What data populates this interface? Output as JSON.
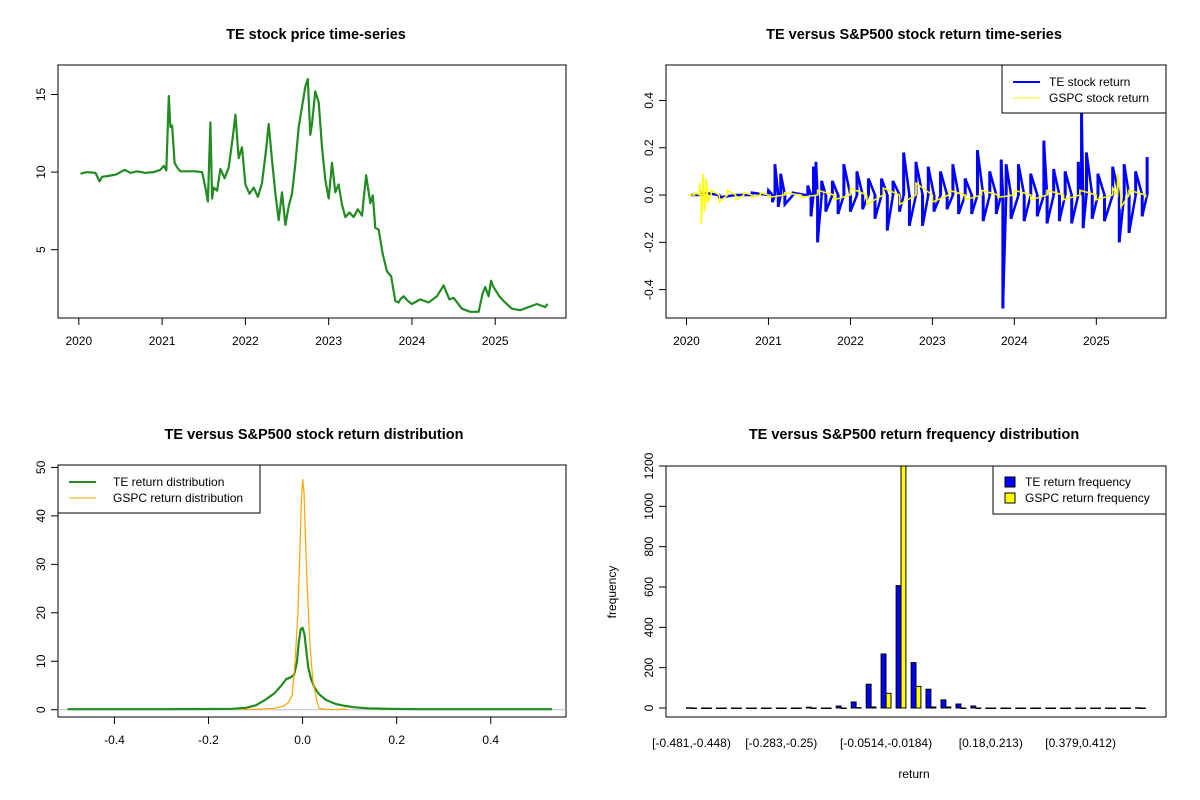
{
  "chart_data": [
    {
      "id": "price",
      "type": "line",
      "title": "TE stock price time-series",
      "xlabel": "",
      "ylabel": "",
      "xlim": [
        2019.75,
        2025.85
      ],
      "ylim": [
        0.6,
        16.9
      ],
      "xticks": [
        2020,
        2021,
        2022,
        2023,
        2024,
        2025
      ],
      "xtick_labels": [
        "2020",
        "2021",
        "2022",
        "2023",
        "2024",
        "2025"
      ],
      "yticks": [
        5,
        10,
        15
      ],
      "ytick_labels": [
        "5",
        "10",
        "15"
      ],
      "grid": false,
      "series": [
        {
          "name": "TE price",
          "color": "#228B22",
          "x": [
            2020.02,
            2020.1,
            2020.2,
            2020.25,
            2020.28,
            2020.35,
            2020.45,
            2020.55,
            2020.62,
            2020.7,
            2020.8,
            2020.9,
            2020.98,
            2021.02,
            2021.05,
            2021.08,
            2021.1,
            2021.12,
            2021.15,
            2021.18,
            2021.22,
            2021.3,
            2021.4,
            2021.48,
            2021.52,
            2021.55,
            2021.58,
            2021.6,
            2021.62,
            2021.66,
            2021.7,
            2021.75,
            2021.8,
            2021.85,
            2021.88,
            2021.92,
            2021.96,
            2022.0,
            2022.05,
            2022.1,
            2022.15,
            2022.2,
            2022.25,
            2022.28,
            2022.32,
            2022.36,
            2022.4,
            2022.44,
            2022.48,
            2022.52,
            2022.56,
            2022.6,
            2022.64,
            2022.68,
            2022.72,
            2022.75,
            2022.78,
            2022.8,
            2022.84,
            2022.88,
            2022.92,
            2022.96,
            2023.0,
            2023.04,
            2023.08,
            2023.12,
            2023.16,
            2023.2,
            2023.25,
            2023.3,
            2023.35,
            2023.4,
            2023.45,
            2023.5,
            2023.53,
            2023.56,
            2023.6,
            2023.65,
            2023.7,
            2023.75,
            2023.8,
            2023.84,
            2023.86,
            2023.9,
            2023.95,
            2024.0,
            2024.1,
            2024.2,
            2024.3,
            2024.38,
            2024.45,
            2024.5,
            2024.6,
            2024.7,
            2024.8,
            2024.85,
            2024.88,
            2024.92,
            2024.95,
            2024.98,
            2025.05,
            2025.1,
            2025.2,
            2025.3,
            2025.4,
            2025.5,
            2025.6,
            2025.63
          ],
          "y": [
            9.9,
            10.0,
            9.95,
            9.4,
            9.7,
            9.75,
            9.85,
            10.15,
            9.95,
            10.05,
            9.95,
            10.0,
            10.15,
            10.4,
            10.1,
            14.9,
            12.9,
            13.0,
            10.6,
            10.3,
            10.05,
            10.05,
            10.05,
            10.0,
            9.0,
            8.1,
            13.2,
            8.3,
            9.0,
            8.8,
            10.2,
            9.6,
            10.3,
            12.3,
            13.7,
            10.9,
            11.6,
            9.2,
            8.6,
            9.0,
            8.4,
            9.3,
            11.5,
            13.1,
            10.8,
            8.6,
            6.9,
            8.7,
            6.6,
            7.8,
            8.6,
            10.5,
            12.9,
            14.2,
            15.5,
            16.0,
            12.4,
            13.1,
            15.2,
            14.5,
            11.6,
            9.5,
            8.3,
            10.6,
            8.7,
            9.2,
            7.9,
            7.1,
            7.4,
            7.1,
            7.6,
            7.2,
            9.8,
            8.0,
            8.5,
            6.4,
            6.3,
            4.7,
            3.6,
            3.3,
            1.7,
            1.6,
            1.8,
            2.0,
            1.7,
            1.5,
            1.8,
            1.6,
            2.0,
            2.7,
            1.8,
            1.9,
            1.2,
            1.0,
            1.0,
            2.2,
            2.6,
            2.0,
            3.0,
            2.6,
            2.0,
            1.7,
            1.2,
            1.1,
            1.3,
            1.5,
            1.3,
            1.5
          ]
        }
      ]
    },
    {
      "id": "returns",
      "type": "line",
      "title": "TE versus S&P500 stock return time-series",
      "xlabel": "",
      "ylabel": "",
      "xlim": [
        2019.75,
        2025.85
      ],
      "ylim": [
        -0.52,
        0.55
      ],
      "xticks": [
        2020,
        2021,
        2022,
        2023,
        2024,
        2025
      ],
      "xtick_labels": [
        "2020",
        "2021",
        "2022",
        "2023",
        "2024",
        "2025"
      ],
      "yticks": [
        -0.4,
        -0.2,
        0.0,
        0.2,
        0.4
      ],
      "ytick_labels": [
        "-0.4",
        "-0.2",
        "0.0",
        "0.2",
        "0.4"
      ],
      "grid": false,
      "legend": {
        "position": "top-right",
        "entries": [
          "TE stock return",
          "GSPC stock return"
        ]
      },
      "series": [
        {
          "name": "TE stock return",
          "color": "#0000FF",
          "x": [
            2020.05,
            2020.2,
            2020.4,
            2020.6,
            2020.8,
            2021.0,
            2021.05,
            2021.08,
            2021.12,
            2021.15,
            2021.2,
            2021.3,
            2021.45,
            2021.48,
            2021.52,
            2021.55,
            2021.58,
            2021.6,
            2021.65,
            2021.7,
            2021.78,
            2021.85,
            2021.92,
            2022.0,
            2022.08,
            2022.15,
            2022.22,
            2022.3,
            2022.38,
            2022.45,
            2022.52,
            2022.6,
            2022.65,
            2022.72,
            2022.8,
            2022.88,
            2022.95,
            2023.02,
            2023.1,
            2023.18,
            2023.25,
            2023.32,
            2023.4,
            2023.48,
            2023.55,
            2023.62,
            2023.7,
            2023.78,
            2023.84,
            2023.86,
            2023.9,
            2023.96,
            2024.05,
            2024.12,
            2024.2,
            2024.28,
            2024.36,
            2024.4,
            2024.48,
            2024.55,
            2024.62,
            2024.7,
            2024.78,
            2024.82,
            2024.84,
            2024.88,
            2024.95,
            2025.02,
            2025.1,
            2025.2,
            2025.28,
            2025.34,
            2025.4,
            2025.48,
            2025.56,
            2025.62
          ],
          "y": [
            0.0,
            0.01,
            -0.01,
            0.0,
            0.01,
            0.02,
            -0.03,
            0.13,
            -0.05,
            0.09,
            -0.04,
            0.01,
            0.0,
            0.04,
            -0.09,
            0.12,
            0.14,
            -0.2,
            0.06,
            -0.07,
            0.06,
            -0.08,
            0.13,
            -0.07,
            0.1,
            -0.06,
            0.07,
            -0.1,
            0.07,
            -0.15,
            0.06,
            -0.07,
            0.18,
            -0.13,
            0.14,
            -0.13,
            0.12,
            -0.07,
            0.1,
            -0.06,
            0.13,
            -0.08,
            0.07,
            -0.08,
            0.19,
            -0.11,
            0.1,
            -0.08,
            0.15,
            -0.48,
            0.13,
            -0.1,
            0.13,
            -0.11,
            0.09,
            -0.09,
            0.23,
            -0.12,
            0.11,
            -0.11,
            0.1,
            -0.12,
            0.14,
            0.35,
            -0.14,
            0.18,
            -0.1,
            0.09,
            -0.11,
            0.12,
            -0.2,
            0.13,
            -0.16,
            0.1,
            -0.09,
            0.16
          ]
        },
        {
          "name": "GSPC stock return",
          "color": "#FFFF00",
          "x": [
            2020.02,
            2020.1,
            2020.16,
            2020.18,
            2020.2,
            2020.22,
            2020.24,
            2020.26,
            2020.3,
            2020.4,
            2020.5,
            2020.6,
            2020.7,
            2020.8,
            2020.9,
            2021.0,
            2021.2,
            2021.4,
            2021.6,
            2021.8,
            2022.0,
            2022.2,
            2022.4,
            2022.6,
            2022.8,
            2023.0,
            2023.2,
            2023.4,
            2023.6,
            2023.8,
            2024.0,
            2024.2,
            2024.4,
            2024.6,
            2024.8,
            2025.0,
            2025.2,
            2025.26,
            2025.3,
            2025.4,
            2025.6
          ],
          "y": [
            0.0,
            0.01,
            0.05,
            -0.12,
            0.09,
            -0.07,
            0.07,
            -0.03,
            0.02,
            -0.03,
            0.02,
            -0.02,
            0.01,
            -0.01,
            0.01,
            -0.01,
            0.01,
            -0.01,
            0.02,
            -0.02,
            0.03,
            -0.04,
            0.03,
            -0.04,
            0.05,
            -0.03,
            0.02,
            -0.02,
            0.02,
            -0.01,
            0.02,
            -0.02,
            0.02,
            -0.02,
            0.02,
            -0.02,
            0.03,
            0.09,
            -0.05,
            0.02,
            -0.01
          ]
        }
      ]
    },
    {
      "id": "density",
      "type": "line",
      "title": "TE versus S&P500 stock return distribution",
      "xlabel": "",
      "ylabel": "",
      "xlim": [
        -0.52,
        0.56
      ],
      "ylim": [
        -1.5,
        50.5
      ],
      "xticks": [
        -0.4,
        -0.2,
        0.0,
        0.2,
        0.4
      ],
      "xtick_labels": [
        "-0.4",
        "-0.2",
        "0.0",
        "0.2",
        "0.4"
      ],
      "yticks": [
        0,
        10,
        20,
        30,
        40,
        50
      ],
      "ytick_labels": [
        "0",
        "10",
        "20",
        "30",
        "40",
        "50"
      ],
      "grid": false,
      "baseline": 0,
      "legend": {
        "position": "top-left",
        "entries": [
          "TE return distribution",
          "GSPC return distribution"
        ]
      },
      "series": [
        {
          "name": "TE return distribution",
          "color": "#228B22",
          "x": [
            -0.5,
            -0.3,
            -0.2,
            -0.15,
            -0.12,
            -0.1,
            -0.08,
            -0.06,
            -0.045,
            -0.035,
            -0.025,
            -0.018,
            -0.012,
            -0.008,
            -0.004,
            0.0,
            0.004,
            0.008,
            0.012,
            0.018,
            0.025,
            0.035,
            0.05,
            0.07,
            0.09,
            0.11,
            0.14,
            0.18,
            0.25,
            0.4,
            0.53
          ],
          "y": [
            0.1,
            0.1,
            0.15,
            0.2,
            0.4,
            0.9,
            2.0,
            3.4,
            5.0,
            6.3,
            6.7,
            7.2,
            9.8,
            14.0,
            16.6,
            16.9,
            15.5,
            12.0,
            8.8,
            6.3,
            4.6,
            3.2,
            2.0,
            1.2,
            0.8,
            0.5,
            0.3,
            0.2,
            0.1,
            0.1,
            0.1
          ]
        },
        {
          "name": "GSPC return distribution",
          "color": "#FFA500",
          "x": [
            -0.13,
            -0.1,
            -0.08,
            -0.06,
            -0.04,
            -0.03,
            -0.022,
            -0.016,
            -0.01,
            -0.006,
            -0.003,
            0.0,
            0.003,
            0.006,
            0.01,
            0.016,
            0.022,
            0.03,
            0.035,
            0.05,
            0.07,
            0.09,
            0.095
          ],
          "y": [
            0.0,
            0.1,
            0.2,
            0.3,
            0.8,
            1.5,
            3.0,
            10.0,
            20.0,
            32.0,
            42.0,
            47.5,
            45.0,
            36.0,
            25.0,
            13.0,
            6.0,
            2.0,
            0.3,
            0.1,
            0.0,
            0.2,
            0.0
          ]
        }
      ]
    },
    {
      "id": "histogram",
      "type": "bar",
      "title": "TE versus S&P500 return frequency distribution",
      "xlabel": "return",
      "ylabel": "frequency",
      "ylim": [
        0,
        1200
      ],
      "yticks": [
        0,
        200,
        400,
        600,
        800,
        1000,
        1200
      ],
      "ytick_labels": [
        "0",
        "200",
        "400",
        "600",
        "800",
        "1000",
        "1200"
      ],
      "grid": false,
      "legend": {
        "position": "top-right",
        "entries": [
          "TE return frequency",
          "GSPC return frequency"
        ]
      },
      "categories": [
        "[-0.481,-0.448)",
        "[-0.448,-0.415)",
        "[-0.415,-0.382)",
        "[-0.382,-0.349)",
        "[-0.349,-0.316)",
        "[-0.316,-0.283)",
        "[-0.283,-0.25)",
        "[-0.25,-0.217)",
        "[-0.217,-0.184)",
        "[-0.184,-0.151)",
        "[-0.151,-0.118)",
        "[-0.118,-0.0846)",
        "[-0.0846,-0.0514)",
        "[-0.0514,-0.0184)",
        "[-0.0184,0.0146)",
        "[0.0146,0.0476)",
        "[0.0476,0.0806)",
        "[0.0806,0.114)",
        "[0.114,0.147)",
        "[0.147,0.18)",
        "[0.18,0.213)",
        "[0.213,0.246)",
        "[0.246,0.279)",
        "[0.279,0.312)",
        "[0.312,0.346)",
        "[0.346,0.379)",
        "[0.379,0.412)",
        "[0.412,0.445)",
        "[0.445,0.478)",
        "[0.478,0.511)",
        "[0.511,0.544)"
      ],
      "shown_category_labels": [
        "[-0.481,-0.448)",
        "[-0.283,-0.25)",
        "[-0.0514,-0.0184)",
        "[0.18,0.213)",
        "[0.379,0.412)"
      ],
      "series": [
        {
          "name": "TE return frequency",
          "color": "#0000FF",
          "values": [
            1,
            0,
            0,
            0,
            0,
            0,
            0,
            0,
            4,
            0,
            10,
            30,
            118,
            268,
            607,
            225,
            93,
            40,
            20,
            10,
            0,
            0,
            0,
            0,
            0,
            0,
            0,
            0,
            0,
            0,
            1
          ]
        },
        {
          "name": "GSPC return frequency",
          "color": "#FFFF00",
          "values": [
            0,
            0,
            0,
            0,
            0,
            0,
            0,
            0,
            0,
            0,
            0,
            2,
            5,
            73,
            1300,
            107,
            5,
            5,
            0,
            0,
            0,
            0,
            0,
            0,
            0,
            0,
            0,
            0,
            0,
            0,
            0
          ]
        }
      ]
    }
  ]
}
